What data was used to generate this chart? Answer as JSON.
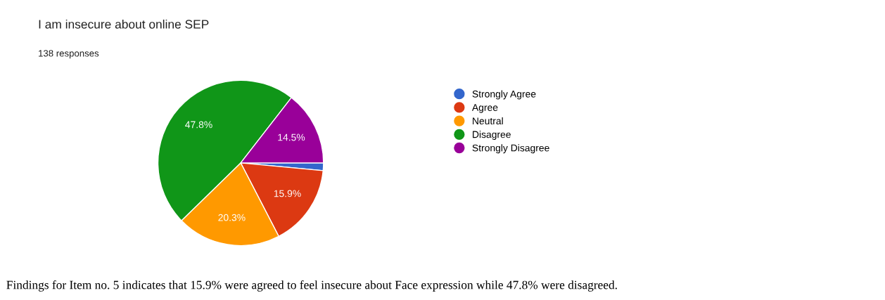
{
  "chart_data": {
    "type": "pie",
    "title": "I am insecure about online SEP",
    "subtitle": "138 responses",
    "categories": [
      "Strongly Agree",
      "Agree",
      "Neutral",
      "Disagree",
      "Strongly Disagree"
    ],
    "values": [
      1.5,
      15.9,
      20.3,
      47.8,
      14.5
    ],
    "colors": [
      "#3366cc",
      "#dc3912",
      "#ff9900",
      "#109618",
      "#990099"
    ],
    "value_labels": [
      null,
      "15.9%",
      "20.3%",
      "47.8%",
      "14.5%"
    ],
    "legend": "right",
    "annotations": [
      "Findings for Item no. 5 indicates that 15.9% were agreed to feel insecure about Face expression while 47.8% were disagreed."
    ]
  }
}
